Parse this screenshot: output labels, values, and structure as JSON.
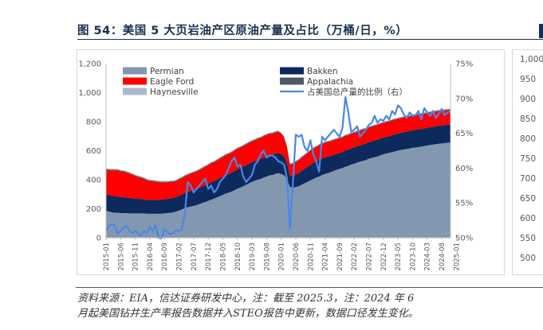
{
  "figure": {
    "title": "图 54：美国 5 大页岩油产区原油产量及占比（万桶/日，%）",
    "source_line1": "资料来源：EIA，信达证券研发中心，注：截至 2025.3，注：2024 年 6",
    "source_line2": "月起美国钻井生产率报告数据并入STEO报告中更新，数据口径发生变化。"
  },
  "side_panel": {
    "ticks": [
      "1,000",
      "950",
      "900",
      "850",
      "800",
      "750",
      "700",
      "650",
      "600",
      "550",
      "500"
    ]
  },
  "colors": {
    "permian": "#8497b0",
    "bakken": "#0c2a5c",
    "eagle_ford": "#ff0000",
    "appalachia": "#4d5866",
    "haynesville": "#adb9ca",
    "share_line": "#4a86e8"
  },
  "chart_data": {
    "type": "area",
    "stacked": true,
    "title": "",
    "xlabel": "",
    "ylabel": "",
    "ylim": [
      0,
      1200
    ],
    "y_ticks": [
      "0",
      "200",
      "400",
      "600",
      "800",
      "1,000",
      "1,200"
    ],
    "y2lim": [
      0.5,
      0.75
    ],
    "y2_ticks": [
      "50%",
      "55%",
      "60%",
      "65%",
      "70%",
      "75%"
    ],
    "x_tick_labels": [
      "2015-01",
      "2015-06",
      "2015-11",
      "2016-04",
      "2016-09",
      "2017-02",
      "2017-07",
      "2017-12",
      "2018-05",
      "2018-10",
      "2019-03",
      "2019-08",
      "2020-01",
      "2020-06",
      "2020-11",
      "2021-04",
      "2021-09",
      "2022-02",
      "2022-07",
      "2022-12",
      "2023-05",
      "2023-10",
      "2024-03",
      "2024-08",
      "2025-01"
    ],
    "legend": {
      "placement": "top-left",
      "entries": [
        "Permian",
        "Bakken",
        "Eagle Ford",
        "Appalachia",
        "Haynesville",
        "占美国总产量的比例（右）"
      ]
    },
    "x_start": "2015-01",
    "x_step": "month",
    "series": [
      {
        "name": "Permian",
        "values": [
          185,
          180,
          175,
          172,
          172,
          170,
          170,
          170,
          168,
          168,
          168,
          168,
          168,
          168,
          165,
          165,
          165,
          165,
          165,
          166,
          168,
          170,
          172,
          175,
          180,
          188,
          195,
          205,
          210,
          215,
          220,
          225,
          232,
          240,
          246,
          254,
          262,
          270,
          278,
          286,
          295,
          305,
          310,
          318,
          328,
          338,
          345,
          355,
          365,
          375,
          385,
          393,
          400,
          405,
          415,
          422,
          430,
          432,
          440,
          445,
          440,
          430,
          405,
          350,
          345,
          350,
          355,
          365,
          375,
          385,
          395,
          405,
          415,
          422,
          432,
          440,
          445,
          452,
          460,
          468,
          475,
          480,
          490,
          495,
          505,
          510,
          518,
          525,
          530,
          535,
          545,
          550,
          555,
          560,
          568,
          575,
          580,
          585,
          590,
          595,
          600,
          605,
          608,
          612,
          615,
          620,
          622,
          625,
          628,
          632,
          635,
          640,
          642,
          645,
          648,
          650,
          652,
          655,
          656
        ]
      },
      {
        "name": "Bakken",
        "values": [
          115,
          115,
          115,
          113,
          112,
          110,
          110,
          108,
          106,
          104,
          102,
          100,
          100,
          98,
          96,
          96,
          96,
          96,
          96,
          98,
          98,
          98,
          100,
          100,
          100,
          102,
          102,
          104,
          106,
          108,
          110,
          110,
          112,
          114,
          116,
          118,
          120,
          120,
          122,
          124,
          126,
          128,
          128,
          130,
          132,
          134,
          134,
          134,
          136,
          136,
          136,
          136,
          138,
          138,
          140,
          140,
          140,
          140,
          140,
          140,
          136,
          130,
          110,
          75,
          80,
          86,
          90,
          96,
          100,
          104,
          108,
          110,
          112,
          114,
          114,
          114,
          114,
          112,
          112,
          110,
          110,
          110,
          112,
          112,
          112,
          112,
          112,
          112,
          114,
          114,
          114,
          114,
          116,
          116,
          116,
          116,
          116,
          116,
          118,
          118,
          118,
          118,
          120,
          120,
          120,
          122,
          122,
          122,
          122,
          122,
          122,
          122,
          122,
          124,
          124,
          124,
          124,
          124,
          124
        ]
      },
      {
        "name": "Eagle Ford",
        "values": [
          170,
          170,
          175,
          180,
          180,
          178,
          175,
          172,
          168,
          162,
          155,
          150,
          145,
          140,
          135,
          130,
          128,
          125,
          122,
          118,
          116,
          114,
          112,
          110,
          110,
          112,
          114,
          115,
          116,
          118,
          118,
          120,
          122,
          124,
          126,
          128,
          130,
          130,
          132,
          134,
          135,
          136,
          138,
          138,
          140,
          140,
          142,
          142,
          142,
          142,
          143,
          143,
          144,
          144,
          144,
          145,
          145,
          145,
          145,
          145,
          140,
          130,
          110,
          80,
          82,
          86,
          88,
          90,
          92,
          94,
          96,
          98,
          98,
          100,
          100,
          100,
          100,
          100,
          100,
          100,
          100,
          100,
          100,
          100,
          100,
          100,
          100,
          100,
          100,
          100,
          100,
          100,
          100,
          100,
          100,
          100,
          100,
          100,
          100,
          100,
          100,
          100,
          100,
          100,
          100,
          100,
          100,
          100,
          100,
          100,
          100,
          100,
          100,
          100,
          100,
          100,
          100,
          100,
          100
        ]
      },
      {
        "name": "Appalachia",
        "values": [
          5,
          5,
          5,
          5,
          5,
          5,
          5,
          5,
          5,
          5,
          5,
          5,
          5,
          5,
          5,
          5,
          5,
          5,
          5,
          5,
          5,
          5,
          5,
          5,
          5,
          5,
          5,
          5,
          5,
          5,
          5,
          5,
          5,
          5,
          5,
          5,
          5,
          5,
          5,
          5,
          5,
          5,
          5,
          5,
          5,
          5,
          5,
          5,
          5,
          5,
          5,
          5,
          5,
          5,
          5,
          5,
          5,
          5,
          5,
          5,
          5,
          5,
          5,
          5,
          5,
          5,
          5,
          5,
          5,
          5,
          5,
          5,
          5,
          5,
          5,
          5,
          5,
          5,
          5,
          5,
          5,
          5,
          5,
          5,
          5,
          5,
          5,
          5,
          5,
          5,
          5,
          5,
          5,
          5,
          5,
          5,
          5,
          5,
          5,
          5,
          5,
          5,
          5,
          5,
          5,
          5,
          5,
          5,
          5,
          5,
          5,
          5,
          5,
          5,
          5,
          5,
          5,
          5,
          5
        ]
      },
      {
        "name": "Haynesville",
        "values": [
          5,
          5,
          5,
          5,
          5,
          5,
          5,
          5,
          5,
          5,
          5,
          5,
          5,
          5,
          5,
          5,
          5,
          5,
          5,
          5,
          5,
          5,
          5,
          5,
          5,
          5,
          5,
          5,
          5,
          5,
          5,
          5,
          5,
          5,
          5,
          5,
          5,
          5,
          5,
          5,
          5,
          5,
          5,
          5,
          5,
          5,
          5,
          5,
          5,
          5,
          5,
          5,
          5,
          5,
          5,
          5,
          5,
          5,
          5,
          5,
          5,
          5,
          5,
          5,
          5,
          5,
          5,
          5,
          5,
          5,
          5,
          5,
          5,
          5,
          5,
          5,
          5,
          5,
          5,
          5,
          5,
          5,
          5,
          5,
          5,
          5,
          5,
          5,
          5,
          5,
          5,
          5,
          5,
          5,
          5,
          5,
          5,
          5,
          5,
          5,
          5,
          5,
          5,
          5,
          5,
          5,
          5,
          5,
          5,
          5,
          5,
          5,
          5,
          5,
          5,
          5,
          5,
          5,
          5
        ]
      },
      {
        "name": "占美国总产量的比例（右）",
        "axis": "right",
        "values": [
          0.51,
          0.517,
          0.52,
          0.517,
          0.506,
          0.51,
          0.514,
          0.517,
          0.51,
          0.507,
          0.51,
          0.506,
          0.503,
          0.51,
          0.507,
          0.516,
          0.51,
          0.518,
          0.5,
          0.499,
          0.512,
          0.508,
          0.505,
          0.507,
          0.51,
          0.51,
          0.512,
          0.535,
          0.58,
          0.575,
          0.565,
          0.57,
          0.575,
          0.58,
          0.585,
          0.57,
          0.575,
          0.565,
          0.57,
          0.58,
          0.585,
          0.59,
          0.6,
          0.61,
          0.615,
          0.602,
          0.605,
          0.588,
          0.58,
          0.585,
          0.59,
          0.605,
          0.61,
          0.62,
          0.625,
          0.615,
          0.618,
          0.618,
          0.615,
          0.61,
          0.608,
          0.605,
          0.585,
          0.513,
          0.578,
          0.648,
          0.645,
          0.648,
          0.63,
          0.625,
          0.64,
          0.62,
          0.61,
          0.595,
          0.645,
          0.64,
          0.645,
          0.65,
          0.655,
          0.65,
          0.645,
          0.658,
          0.702,
          0.68,
          0.652,
          0.655,
          0.66,
          0.645,
          0.65,
          0.655,
          0.662,
          0.665,
          0.675,
          0.665,
          0.67,
          0.668,
          0.675,
          0.67,
          0.682,
          0.677,
          0.69,
          0.686,
          0.677,
          0.672,
          0.68,
          0.675,
          0.676,
          0.682,
          0.67,
          0.686,
          0.68,
          0.675,
          0.682,
          0.672,
          0.678,
          0.685,
          0.676,
          0.68,
          0.682
        ]
      }
    ]
  }
}
